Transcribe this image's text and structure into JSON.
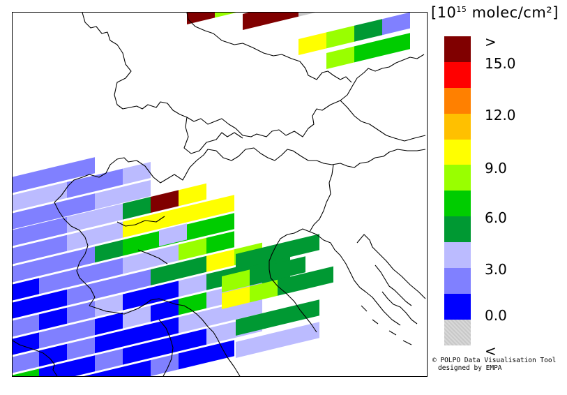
{
  "legend": {
    "unit_prefix": "[10",
    "unit_exponent": "15",
    "unit_suffix": " molec/cm²]",
    "classes": [
      {
        "color": "#800000",
        "label": ">"
      },
      {
        "color": "#ff0000",
        "label": "15.0"
      },
      {
        "color": "#ff8000",
        "label": ""
      },
      {
        "color": "#ffc000",
        "label": "12.0"
      },
      {
        "color": "#ffff00",
        "label": ""
      },
      {
        "color": "#99ff00",
        "label": "9.0"
      },
      {
        "color": "#00cc00",
        "label": ""
      },
      {
        "color": "#009933",
        "label": "6.0"
      },
      {
        "color": "#bbbbff",
        "label": ""
      },
      {
        "color": "#8080ff",
        "label": "3.0"
      },
      {
        "color": "#0000ff",
        "label": ""
      },
      {
        "color": "#c8c8c8",
        "label": "0.0"
      },
      {
        "color": "",
        "label": "<"
      }
    ]
  },
  "credit": {
    "line1": "© POLPO Data Visualisation Tool",
    "line2": "designed by EMPA"
  }
}
